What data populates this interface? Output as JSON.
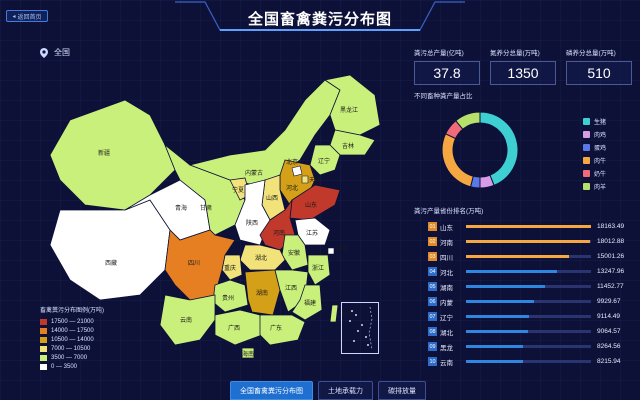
{
  "header": {
    "back_label": "返回首页",
    "title": "全国畜禽粪污分布图"
  },
  "region": {
    "label": "全国",
    "icon": "location-pin-icon"
  },
  "map": {
    "legend_title": "畜禽粪污分布图例(万吨)",
    "legend": [
      {
        "label": "17500 — 21000",
        "color": "#c0392b"
      },
      {
        "label": "14000 — 17500",
        "color": "#e67e22"
      },
      {
        "label": "10500 — 14000",
        "color": "#d4a017"
      },
      {
        "label": "7000 — 10500",
        "color": "#f2e27a"
      },
      {
        "label": "3500 — 7000",
        "color": "#c9f07a"
      },
      {
        "label": "0 — 3500",
        "color": "#ffffff"
      }
    ],
    "provinces": {
      "xinjiang": "新疆",
      "xizang": "西藏",
      "qinghai": "青海",
      "gansu": "甘肃",
      "neimenggu": "内蒙古",
      "heilongjiang": "黑龙江",
      "jilin": "吉林",
      "liaoning": "辽宁",
      "beijing": "北京",
      "tianjin": "天津",
      "hebei": "河北",
      "shanxi": "山西",
      "shandong": "山东",
      "henan": "河南",
      "shaanxi": "陕西",
      "ningxia": "宁夏",
      "sichuan": "四川",
      "chongqing": "重庆",
      "hubei": "湖北",
      "anhui": "安徽",
      "jiangsu": "江苏",
      "shanghai": "上海",
      "zhejiang": "浙江",
      "jiangxi": "江西",
      "hunan": "湖南",
      "guizhou": "贵州",
      "yunnan": "云南",
      "guangxi": "广西",
      "guangdong": "广东",
      "fujian": "福建",
      "hainan": "海南",
      "taiwan": "台湾"
    }
  },
  "stats": [
    {
      "label": "粪污总产量(亿吨)",
      "value": "37.8"
    },
    {
      "label": "氮养分总量(万吨)",
      "value": "1350"
    },
    {
      "label": "磷养分总量(万吨)",
      "value": "510"
    }
  ],
  "donut": {
    "title": "不同畜种粪产量占比",
    "items": [
      {
        "label": "生猪",
        "color": "#3ecfd2",
        "share": 0.44
      },
      {
        "label": "肉鸡",
        "color": "#d79be8",
        "share": 0.06
      },
      {
        "label": "蛋鸡",
        "color": "#5a78e6",
        "share": 0.04
      },
      {
        "label": "肉牛",
        "color": "#f5a742",
        "share": 0.28
      },
      {
        "label": "奶牛",
        "color": "#f06b7a",
        "share": 0.07
      },
      {
        "label": "肉羊",
        "color": "#b6e06a",
        "share": 0.11
      }
    ]
  },
  "ranking": {
    "title": "粪污产量省份排名(万吨)",
    "max": 18163.49,
    "rows": [
      {
        "rank": "01",
        "name": "山东",
        "value": "18163.49",
        "num": 18163.49
      },
      {
        "rank": "02",
        "name": "河南",
        "value": "18012.88",
        "num": 18012.88
      },
      {
        "rank": "03",
        "name": "四川",
        "value": "15001.26",
        "num": 15001.26
      },
      {
        "rank": "04",
        "name": "河北",
        "value": "13247.96",
        "num": 13247.96
      },
      {
        "rank": "05",
        "name": "湖南",
        "value": "11452.77",
        "num": 11452.77
      },
      {
        "rank": "06",
        "name": "内蒙",
        "value": "9929.67",
        "num": 9929.67
      },
      {
        "rank": "07",
        "name": "辽宁",
        "value": "9114.49",
        "num": 9114.49
      },
      {
        "rank": "08",
        "name": "湖北",
        "value": "9064.57",
        "num": 9064.57
      },
      {
        "rank": "09",
        "name": "黑龙",
        "value": "8264.56",
        "num": 8264.56
      },
      {
        "rank": "10",
        "name": "云南",
        "value": "8215.94",
        "num": 8215.94
      }
    ]
  },
  "tabs": [
    {
      "label": "全国畜禽粪污分布图",
      "active": true
    },
    {
      "label": "土地承载力",
      "active": false
    },
    {
      "label": "碳排放量",
      "active": false
    }
  ],
  "colors": {
    "top3": "#f5a742",
    "rest": "#2f86e0",
    "badge_top": "#e08a2a",
    "badge_rest": "#2d6cc8"
  }
}
